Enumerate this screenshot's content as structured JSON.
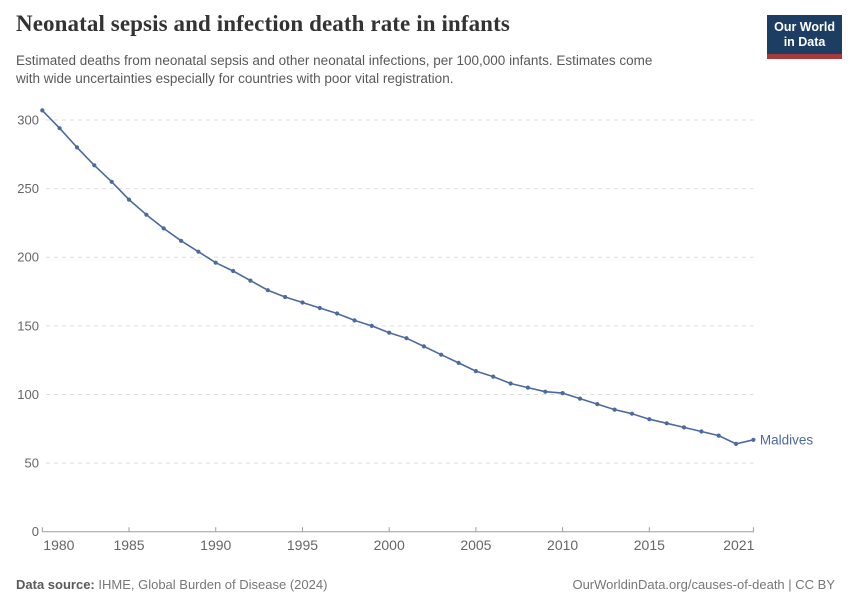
{
  "header": {
    "title": "Neonatal sepsis and infection death rate in infants",
    "subtitle_line1": "Estimated deaths from neonatal sepsis and other neonatal infections, per 100,000 infants. Estimates come",
    "subtitle_line2": "with wide uncertainties especially for countries with poor vital registration.",
    "logo": {
      "line1": "Our World",
      "line2": "in Data"
    }
  },
  "chart_data": {
    "type": "line",
    "entity_label": "Maldives",
    "x": [
      1980,
      1981,
      1982,
      1983,
      1984,
      1985,
      1986,
      1987,
      1988,
      1989,
      1990,
      1991,
      1992,
      1993,
      1994,
      1995,
      1996,
      1997,
      1998,
      1999,
      2000,
      2001,
      2002,
      2003,
      2004,
      2005,
      2006,
      2007,
      2008,
      2009,
      2010,
      2011,
      2012,
      2013,
      2014,
      2015,
      2016,
      2017,
      2018,
      2019,
      2020,
      2021
    ],
    "series": [
      {
        "name": "Maldives",
        "values": [
          307,
          294,
          280,
          267,
          255,
          242,
          231,
          221,
          212,
          204,
          196,
          190,
          183,
          176,
          171,
          167,
          163,
          159,
          154,
          150,
          145,
          141,
          135,
          129,
          123,
          117,
          113,
          108,
          105,
          102,
          101,
          97,
          93,
          89,
          86,
          82,
          79,
          76,
          73,
          70,
          64,
          67
        ]
      }
    ],
    "ylim": [
      0,
      300
    ],
    "yticks": [
      0,
      50,
      100,
      150,
      200,
      250,
      300
    ],
    "xticks": [
      1980,
      1985,
      1990,
      1995,
      2000,
      2005,
      2010,
      2015,
      2021
    ],
    "grid": "horizontal-dashed",
    "legend_position": "end-of-line-label"
  },
  "footer": {
    "source_label": "Data source:",
    "source_value": " IHME, Global Burden of Disease (2024)",
    "credit": "OurWorldinData.org/causes-of-death | CC BY"
  },
  "colors": {
    "line": "#4c6a9c",
    "grid": "#dedede",
    "axis": "#9e9e9e",
    "tick_text": "#666666",
    "title_text": "#333333",
    "subtitle_text": "#595959",
    "logo_bg": "#1d3d63",
    "logo_accent": "#a93a3a"
  }
}
